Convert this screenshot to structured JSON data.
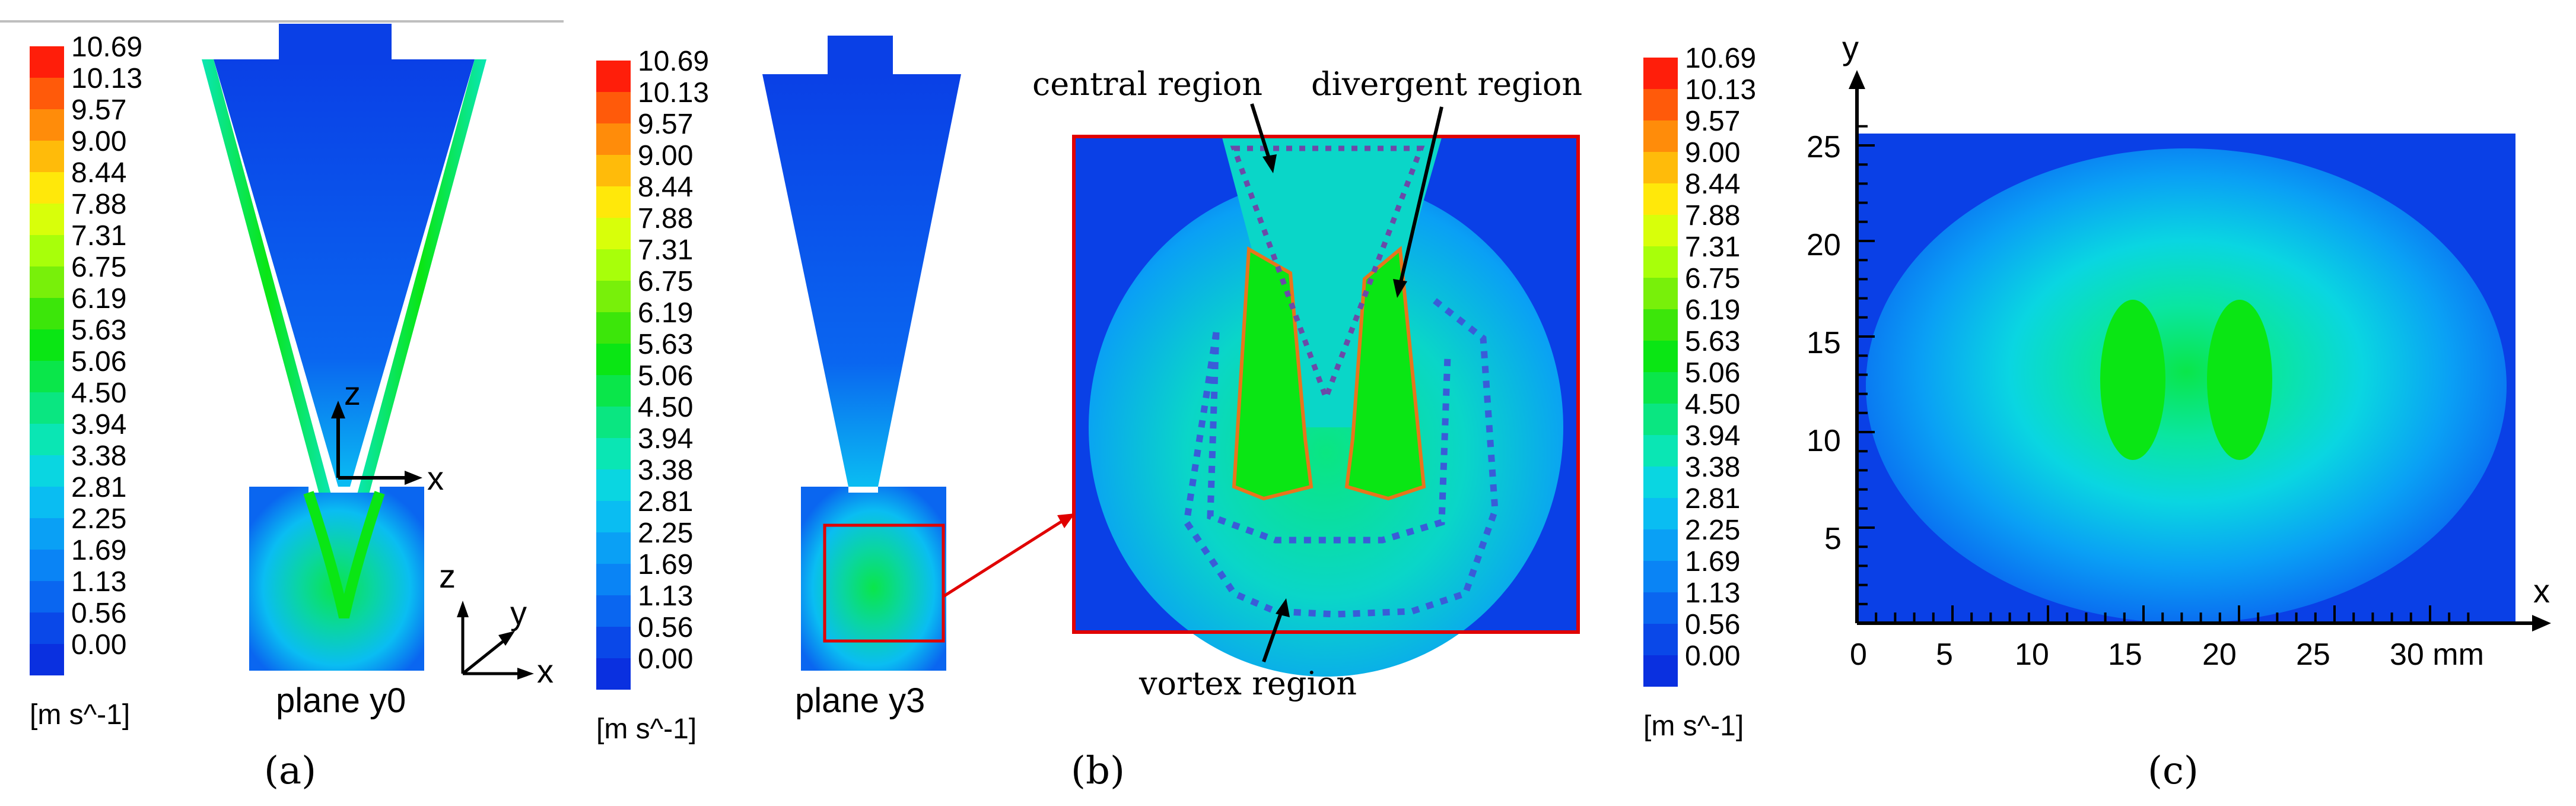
{
  "colorbar": {
    "ticks": [
      "10.69",
      "10.13",
      "9.57",
      "9.00",
      "8.44",
      "7.88",
      "7.31",
      "6.75",
      "6.19",
      "5.63",
      "5.06",
      "4.50",
      "3.94",
      "3.38",
      "2.81",
      "2.25",
      "1.69",
      "1.13",
      "0.56",
      "0.00"
    ],
    "unit": "[m s^-1]",
    "colors": [
      "#ff1e0a",
      "#ff5a0a",
      "#ff8c0a",
      "#ffbb0a",
      "#ffe80a",
      "#d8ff0a",
      "#a8ff0a",
      "#78f00a",
      "#3ce60a",
      "#0ae614",
      "#0ae64a",
      "#0ae681",
      "#0ae6b4",
      "#0ad6e1",
      "#0abdf2",
      "#0aa0f5",
      "#0a84f5",
      "#0a66f0",
      "#0a48e8",
      "#0a30e0"
    ]
  },
  "panel_a": {
    "caption": "(a)",
    "plane_label": "plane y0",
    "axis_z": "z",
    "axis_x": "x",
    "axis_y": "y",
    "axis_z2": "z",
    "axis_x2": "x"
  },
  "panel_b": {
    "caption": "(b)",
    "plane_label": "plane y3",
    "region_central": "central region",
    "region_divergent": "divergent region",
    "region_vortex": "vortex region"
  },
  "panel_c": {
    "caption": "(c)",
    "axis_x": "x",
    "axis_y": "y",
    "x_ticks": [
      "0",
      "5",
      "10",
      "15",
      "20",
      "25",
      "30 mm"
    ],
    "y_ticks": [
      "25",
      "20",
      "15",
      "10",
      "5"
    ]
  }
}
